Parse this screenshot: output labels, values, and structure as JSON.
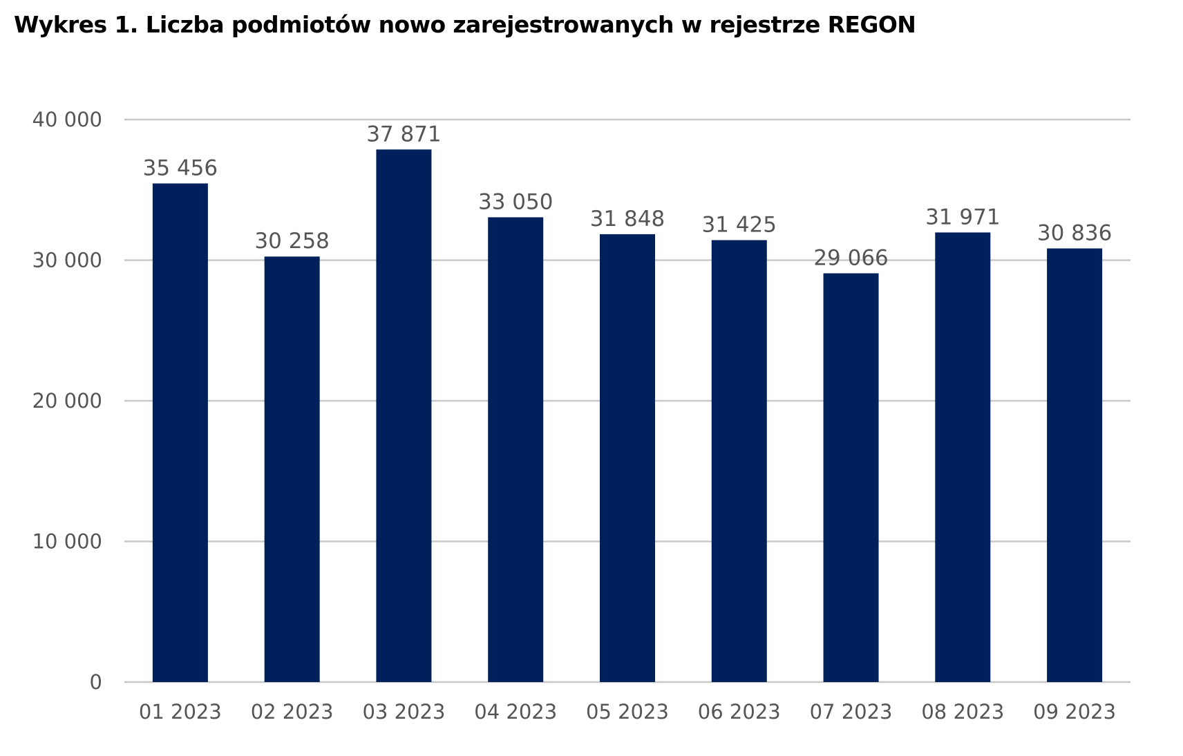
{
  "chart_data": {
    "type": "bar",
    "title": "Wykres 1. Liczba podmiotów nowo zarejestrowanych w rejestrze REGON",
    "categories": [
      "01 2023",
      "02 2023",
      "03 2023",
      "04 2023",
      "05 2023",
      "06 2023",
      "07 2023",
      "08 2023",
      "09 2023"
    ],
    "values": [
      35456,
      30258,
      37871,
      33050,
      31848,
      31425,
      29066,
      31971,
      30836
    ],
    "value_labels": [
      "35 456",
      "30 258",
      "37 871",
      "33 050",
      "31 848",
      "31 425",
      "29 066",
      "31 971",
      "30 836"
    ],
    "ylim": [
      0,
      40000
    ],
    "yticks": [
      0,
      10000,
      20000,
      30000,
      40000
    ],
    "ytick_labels": [
      "0",
      "10 000",
      "20 000",
      "30 000",
      "40 000"
    ],
    "grid": true,
    "legend": "none",
    "bar_color": "#00205b"
  }
}
